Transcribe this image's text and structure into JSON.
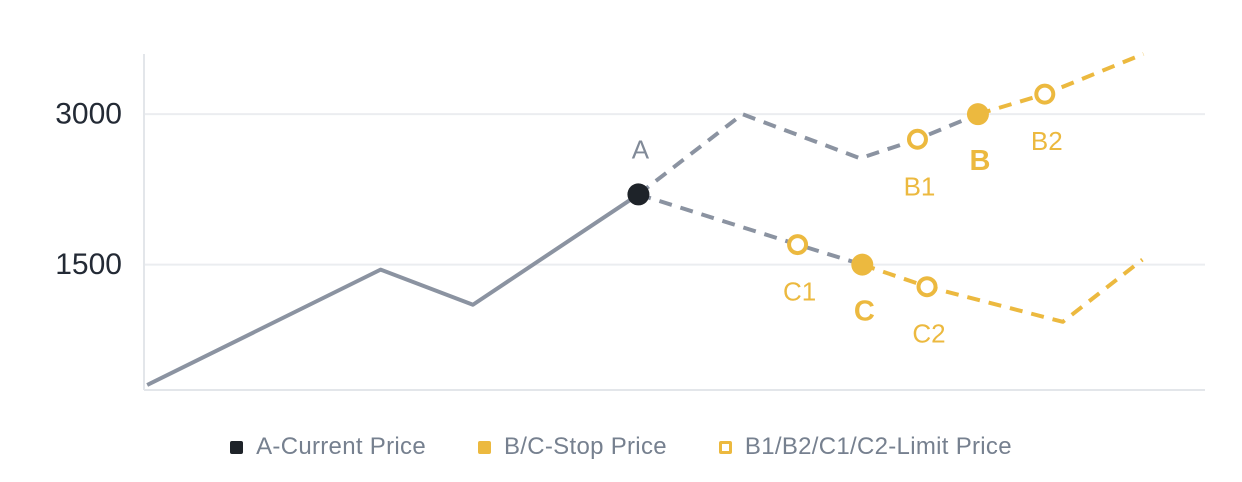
{
  "colors": {
    "yellow": "#ECB93F",
    "dark": "#1E2329",
    "line_gray": "#8B93A1",
    "label_gray": "#818A98",
    "legend_text": "#76808F",
    "grid": "#EBEDF0",
    "axis": "#E3E6EA",
    "tick_text": "#232A35",
    "background": "#FFFFFF"
  },
  "chart_data": {
    "type": "line",
    "title": "",
    "xlabel": "",
    "ylabel": "",
    "x_axis": {
      "xlim": [
        0,
        100
      ],
      "ticks": [],
      "axis_line_visible": true
    },
    "y_axis": {
      "ylim": [
        250,
        3600
      ],
      "ticks": [
        {
          "value": 3000,
          "label": "3000"
        },
        {
          "value": 1500,
          "label": "1500"
        }
      ],
      "gridlines": [
        3000,
        1500
      ],
      "axis_line_visible": true
    },
    "series": [
      {
        "name": "price-history",
        "line": "solid",
        "color_key": "gray",
        "points": [
          [
            0.3,
            300
          ],
          [
            22.3,
            1450
          ],
          [
            31,
            1100
          ],
          [
            46.6,
            2200
          ]
        ]
      },
      {
        "name": "projected-rise-to-stop-B",
        "line": "dashed",
        "color_key": "gray",
        "points": [
          [
            46.6,
            2200
          ],
          [
            56.4,
            3000
          ],
          [
            67.5,
            2560
          ],
          [
            72.9,
            2750
          ],
          [
            78.6,
            3000
          ]
        ]
      },
      {
        "name": "after-stop-B-triggered",
        "line": "dashed",
        "color_key": "yellow",
        "points": [
          [
            78.6,
            3000
          ],
          [
            84.9,
            3200
          ],
          [
            94.2,
            3600
          ]
        ]
      },
      {
        "name": "projected-fall-to-stop-C",
        "line": "dashed",
        "color_key": "gray",
        "points": [
          [
            46.6,
            2200
          ],
          [
            61.6,
            1700
          ],
          [
            67.7,
            1500
          ]
        ]
      },
      {
        "name": "after-stop-C-triggered",
        "line": "dashed",
        "color_key": "yellow",
        "points": [
          [
            67.7,
            1500
          ],
          [
            73.8,
            1280
          ],
          [
            86.6,
            930
          ],
          [
            94.1,
            1550
          ]
        ]
      }
    ],
    "markers": [
      {
        "label": "A",
        "x": 46.6,
        "y": 2200,
        "kind": "current-price",
        "marker": "filled-dark",
        "label_pos": "above",
        "bold": false
      },
      {
        "label": "B1",
        "x": 72.9,
        "y": 2750,
        "kind": "limit-price",
        "marker": "open-yellow",
        "label_pos": "below",
        "bold": false
      },
      {
        "label": "B",
        "x": 78.6,
        "y": 3000,
        "kind": "stop-price",
        "marker": "filled-yellow",
        "label_pos": "below",
        "bold": true
      },
      {
        "label": "B2",
        "x": 84.9,
        "y": 3200,
        "kind": "limit-price",
        "marker": "open-yellow",
        "label_pos": "below",
        "bold": false
      },
      {
        "label": "C1",
        "x": 61.6,
        "y": 1700,
        "kind": "limit-price",
        "marker": "open-yellow",
        "label_pos": "below",
        "bold": false
      },
      {
        "label": "C",
        "x": 67.7,
        "y": 1500,
        "kind": "stop-price",
        "marker": "filled-yellow",
        "label_pos": "below",
        "bold": true
      },
      {
        "label": "C2",
        "x": 73.8,
        "y": 1280,
        "kind": "limit-price",
        "marker": "open-yellow",
        "label_pos": "below",
        "bold": false
      }
    ],
    "legend_position": "bottom-center"
  },
  "legend": {
    "items": [
      {
        "label": "A-Current Price",
        "swatch": "filled-dark"
      },
      {
        "label": "B/C-Stop Price",
        "swatch": "filled-yellow"
      },
      {
        "label": "B1/B2/C1/C2-Limit Price",
        "swatch": "open-yellow"
      }
    ]
  }
}
